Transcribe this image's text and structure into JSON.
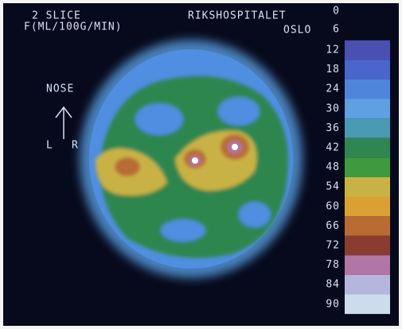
{
  "header": {
    "slice": "2 SLICE",
    "unit": "F(ML/100G/MIN)",
    "hospital": "RIKSHOSPITALET",
    "city": "OSLO"
  },
  "orientation": {
    "nose": "NOSE",
    "left": "L",
    "right": "R"
  },
  "scale": [
    {
      "label": 0
    },
    {
      "label": 6
    },
    {
      "label": 12,
      "color": "#4a4fb2"
    },
    {
      "label": 18,
      "color": "#4a66cc"
    },
    {
      "label": 24,
      "color": "#4f86dc"
    },
    {
      "label": 30,
      "color": "#5f9fe2"
    },
    {
      "label": 36,
      "color": "#4a9ab4"
    },
    {
      "label": 42,
      "color": "#2f8650"
    },
    {
      "label": 48,
      "color": "#3f9a3f"
    },
    {
      "label": 54,
      "color": "#c9b244"
    },
    {
      "label": 60,
      "color": "#d9a034"
    },
    {
      "label": 66,
      "color": "#b86c34"
    },
    {
      "label": 72,
      "color": "#8a3c30"
    },
    {
      "label": 78,
      "color": "#b276a6"
    },
    {
      "label": 84,
      "color": "#b4b6dc"
    },
    {
      "label": 90,
      "color": "#cddcea"
    }
  ]
}
